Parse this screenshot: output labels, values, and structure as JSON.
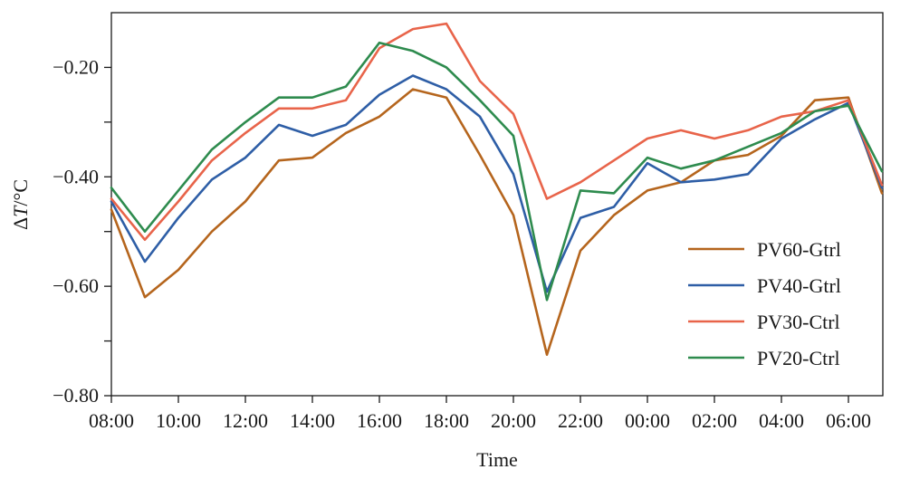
{
  "chart_data": {
    "type": "line",
    "title": "",
    "xlabel": "Time",
    "ylabel": "ΔT/°C",
    "ylabel_parts": {
      "prefix": "Δ",
      "variable": "T",
      "unit": "/°C"
    },
    "ylim": [
      -0.8,
      -0.1
    ],
    "grid": false,
    "legend_position": "bottom-right",
    "x": [
      "08:00",
      "09:00",
      "10:00",
      "11:00",
      "12:00",
      "13:00",
      "14:00",
      "15:00",
      "16:00",
      "17:00",
      "18:00",
      "19:00",
      "20:00",
      "21:00",
      "22:00",
      "23:00",
      "00:00",
      "01:00",
      "02:00",
      "03:00",
      "04:00",
      "05:00",
      "06:00",
      "07:00"
    ],
    "x_tick_labels": [
      "08:00",
      "10:00",
      "12:00",
      "14:00",
      "16:00",
      "18:00",
      "20:00",
      "22:00",
      "00:00",
      "02:00",
      "04:00",
      "06:00"
    ],
    "x_tick_indices": [
      0,
      2,
      4,
      6,
      8,
      10,
      12,
      14,
      16,
      18,
      20,
      22
    ],
    "y_ticks": [
      -0.2,
      -0.3,
      -0.4,
      -0.5,
      -0.6,
      -0.7,
      -0.8
    ],
    "y_tick_labels": [
      {
        "value": -0.2,
        "label": "−0.20"
      },
      {
        "value": -0.4,
        "label": "−0.40"
      },
      {
        "value": -0.6,
        "label": "−0.60"
      },
      {
        "value": -0.8,
        "label": "−0.80"
      }
    ],
    "series": [
      {
        "name": "PV60-Gtrl",
        "color": "#b5651d",
        "values": [
          -0.46,
          -0.62,
          -0.57,
          -0.5,
          -0.445,
          -0.37,
          -0.365,
          -0.32,
          -0.29,
          -0.24,
          -0.255,
          -0.36,
          -0.47,
          -0.725,
          -0.535,
          -0.47,
          -0.425,
          -0.41,
          -0.37,
          -0.36,
          -0.325,
          -0.26,
          -0.255,
          -0.43
        ]
      },
      {
        "name": "PV40-Gtrl",
        "color": "#2e5ea6",
        "values": [
          -0.445,
          -0.555,
          -0.475,
          -0.405,
          -0.365,
          -0.305,
          -0.325,
          -0.305,
          -0.25,
          -0.215,
          -0.24,
          -0.29,
          -0.395,
          -0.61,
          -0.475,
          -0.455,
          -0.375,
          -0.41,
          -0.405,
          -0.395,
          -0.33,
          -0.295,
          -0.265,
          -0.42
        ]
      },
      {
        "name": "PV30-Ctrl",
        "color": "#e8644a",
        "values": [
          -0.44,
          -0.515,
          -0.445,
          -0.37,
          -0.32,
          -0.275,
          -0.275,
          -0.26,
          -0.165,
          -0.13,
          -0.12,
          -0.225,
          -0.285,
          -0.44,
          -0.41,
          -0.37,
          -0.33,
          -0.315,
          -0.33,
          -0.315,
          -0.29,
          -0.28,
          -0.26,
          -0.415
        ]
      },
      {
        "name": "PV20-Ctrl",
        "color": "#2e8b4e",
        "values": [
          -0.42,
          -0.5,
          -0.425,
          -0.35,
          -0.3,
          -0.255,
          -0.255,
          -0.235,
          -0.155,
          -0.17,
          -0.2,
          -0.26,
          -0.325,
          -0.625,
          -0.425,
          -0.43,
          -0.365,
          -0.385,
          -0.37,
          -0.345,
          -0.32,
          -0.28,
          -0.27,
          -0.39
        ]
      }
    ]
  }
}
